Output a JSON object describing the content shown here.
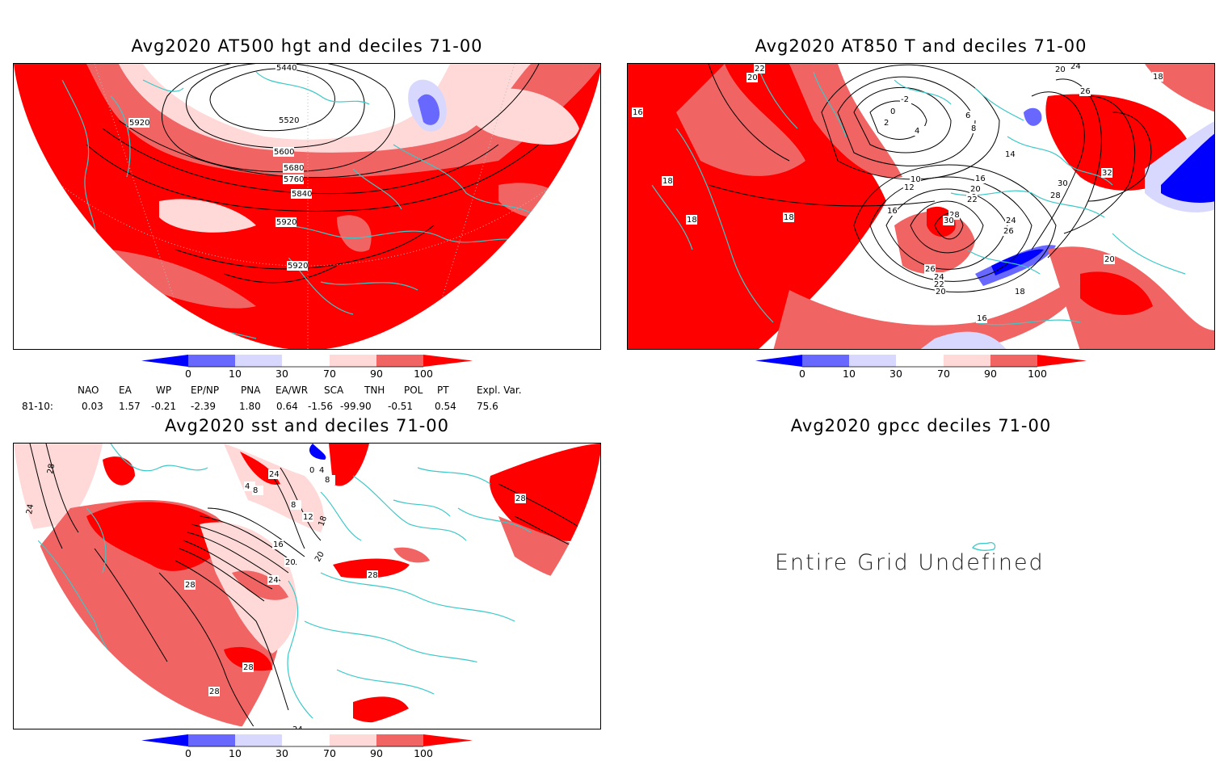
{
  "panels": {
    "at500": {
      "title": "Avg2020 AT500 hgt and deciles 71-00",
      "contour_labels": [
        "5440",
        "5520",
        "5600",
        "5680",
        "5760",
        "5840",
        "5920",
        "5920",
        "5920"
      ]
    },
    "at850": {
      "title": "Avg2020 AT850 T and deciles 71-00",
      "contour_labels": [
        "22",
        "20",
        "-2",
        "0",
        "2",
        "4",
        "6",
        "8",
        "14",
        "16",
        "10",
        "12",
        "16",
        "18",
        "18",
        "18",
        "20",
        "22",
        "28",
        "30",
        "26",
        "24",
        "22",
        "20",
        "18",
        "24",
        "26",
        "28",
        "30",
        "32",
        "26",
        "24",
        "20",
        "18",
        "16",
        "16",
        "20"
      ]
    },
    "sst": {
      "title": "Avg2020 sst and deciles 71-00",
      "contour_labels": [
        "28",
        "24",
        "24",
        "4",
        "8",
        "0",
        "4",
        "8",
        "8",
        "12",
        "16",
        "18",
        "20",
        "20",
        "24",
        "28",
        "28",
        "28",
        "28",
        "28",
        "24"
      ]
    },
    "gpcc": {
      "title": "Avg2020 gpcc deciles 71-00",
      "message": "Entire Grid Undefined"
    }
  },
  "colorbar": {
    "ticks": [
      "0",
      "10",
      "30",
      "70",
      "90",
      "100"
    ],
    "colors": [
      "#0000ff",
      "#6868ff",
      "#d8d8ff",
      "#ffffff",
      "#ffd8d8",
      "#f06464",
      "#ff0000"
    ]
  },
  "indices": {
    "headers": [
      "NAO",
      "EA",
      "WP",
      "EP/NP",
      "PNA",
      "EA/WR",
      "SCA",
      "TNH",
      "POL",
      "PT",
      "Expl. Var."
    ],
    "row_label": "81-10:",
    "values": [
      "0.03",
      "1.57",
      "-0.21",
      "-2.39",
      "1.80",
      "0.64",
      "-1.56",
      "-99.90",
      "-0.51",
      "0.54",
      "75.6"
    ]
  },
  "colors": {
    "coastline": "#3cc8c8",
    "contour": "#000000",
    "strong_red": "#ff0000",
    "mid_red": "#f06464",
    "light_red": "#ffd8d8",
    "light_blue": "#d8d8ff",
    "mid_blue": "#6868ff",
    "strong_blue": "#0000ff"
  }
}
